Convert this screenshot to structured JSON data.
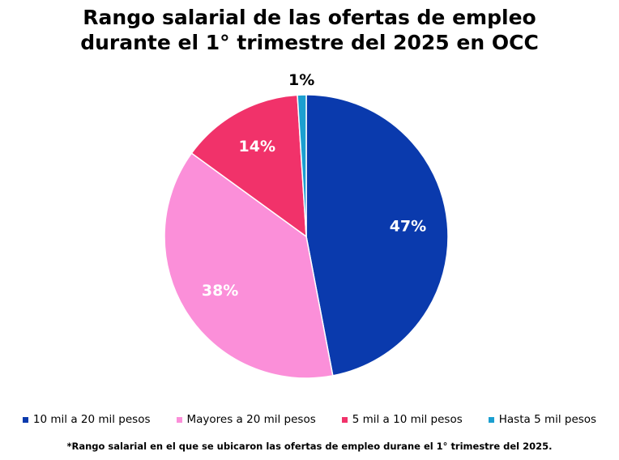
{
  "chart_data": {
    "type": "pie",
    "title_lines": [
      "Rango salarial de las ofertas de empleo",
      "durante el 1° trimestre del 2025 en OCC"
    ],
    "slices": [
      {
        "name": "10 mil a 20 mil pesos",
        "value": 47,
        "label": "47%",
        "color": "#0a3aad",
        "label_color": "#ffffff"
      },
      {
        "name": "Mayores a 20 mil pesos",
        "value": 38,
        "label": "38%",
        "color": "#fb8fd9",
        "label_color": "#ffffff"
      },
      {
        "name": "5 mil a 10 mil pesos",
        "value": 14,
        "label": "14%",
        "color": "#f1326a",
        "label_color": "#ffffff"
      },
      {
        "name": "Hasta 5 mil pesos",
        "value": 1,
        "label": "1%",
        "color": "#1b9fd0",
        "label_color": "#000000"
      }
    ],
    "legend_position": "bottom",
    "start": "top",
    "direction": "clockwise"
  },
  "footnote": "*Rango salarial en el que se ubicaron las ofertas de empleo durane el 1° trimestre del 2025."
}
